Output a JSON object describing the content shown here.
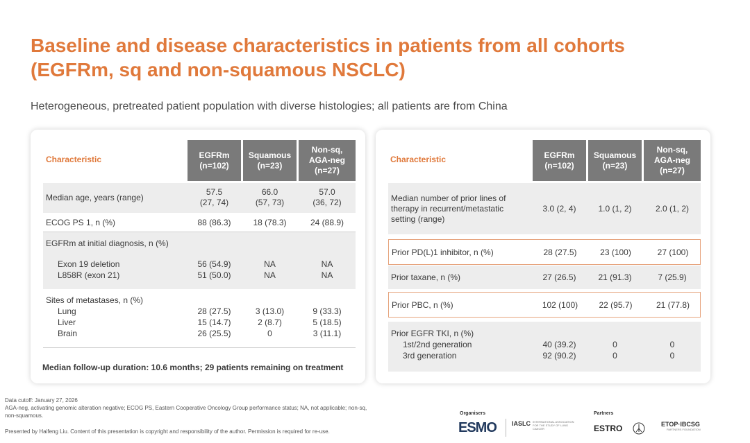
{
  "title_line1": "Baseline and disease characteristics in patients from all cohorts",
  "title_line2": "(EGFRm, sq and non-squamous NSCLC)",
  "subtitle": "Heterogeneous, pretreated patient population with diverse histologies; all patients are from China",
  "columns": {
    "characteristic": "Characteristic",
    "c1_l1": "EGFRm",
    "c1_l2": "(n=102)",
    "c2_l1": "Squamous",
    "c2_l2": "(n=23)",
    "c3_l1": "Non-sq,",
    "c3_l2": "AGA-neg",
    "c3_l3": "(n=27)"
  },
  "left": {
    "age_label": "Median age, years (range)",
    "age_c1a": "57.5",
    "age_c1b": "(27, 74)",
    "age_c2a": "66.0",
    "age_c2b": "(57, 73)",
    "age_c3a": "57.0",
    "age_c3b": "(36, 72)",
    "ecog_label": "ECOG PS 1, n (%)",
    "ecog_c1": "88 (86.3)",
    "ecog_c2": "18 (78.3)",
    "ecog_c3": "24 (88.9)",
    "egfr_label": "EGFRm at initial diagnosis, n (%)",
    "exon19": "Exon 19 deletion",
    "exon19_c1": "56 (54.9)",
    "exon19_c2": "NA",
    "exon19_c3": "NA",
    "l858r": "L858R (exon 21)",
    "l858r_c1": "51 (50.0)",
    "l858r_c2": "NA",
    "l858r_c3": "NA",
    "mets_label": "Sites of metastases, n (%)",
    "lung": "Lung",
    "lung_c1": "28 (27.5)",
    "lung_c2": "3 (13.0)",
    "lung_c3": "9 (33.3)",
    "liver": "Liver",
    "liver_c1": "15 (14.7)",
    "liver_c2": "2 (8.7)",
    "liver_c3": "5 (18.5)",
    "brain": "Brain",
    "brain_c1": "26 (25.5)",
    "brain_c2": "0",
    "brain_c3": "3 (11.1)",
    "followup": "Median follow-up duration: 10.6 months; 29 patients remaining on treatment"
  },
  "right": {
    "lines_l1": "Median number of prior lines of",
    "lines_l2": "therapy in recurrent/metastatic",
    "lines_l3": "setting (range)",
    "lines_c1": "3.0 (2, 4)",
    "lines_c2": "1.0 (1, 2)",
    "lines_c3": "2.0 (1, 2)",
    "pdl1_label": "Prior PD(L)1 inhibitor, n (%)",
    "pdl1_c1": "28 (27.5)",
    "pdl1_c2": "23 (100)",
    "pdl1_c3": "27 (100)",
    "taxane_label": "Prior taxane, n (%)",
    "taxane_c1": "27 (26.5)",
    "taxane_c2": "21 (91.3)",
    "taxane_c3": "7 (25.9)",
    "pbc_label": "Prior PBC, n (%)",
    "pbc_c1": "102 (100)",
    "pbc_c2": "22 (95.7)",
    "pbc_c3": "21 (77.8)",
    "tki_label": "Prior EGFR TKI, n (%)",
    "gen12": "1st/2nd generation",
    "gen12_c1": "40 (39.2)",
    "gen12_c2": "0",
    "gen12_c3": "0",
    "gen3": "3rd generation",
    "gen3_c1": "92 (90.2)",
    "gen3_c2": "0",
    "gen3_c3": "0"
  },
  "footnotes": {
    "cutoff": "Data cutoff: January 27, 2026",
    "abbr1": "AGA-neg, activating genomic alteration negative; ECOG PS, Eastern Cooperative Oncology Group performance status; NA, not applicable; non-sq,",
    "abbr2": "non-squamous.",
    "presented": "Presented by Haifeng Liu. Content of this presentation is copyright and responsibility of the author. Permission is required for re-use."
  },
  "logos": {
    "organisers": "Organisers",
    "partners": "Partners",
    "esmo": "ESMO",
    "iaslc": "IASLC",
    "iaslc_sub": "INTERNATIONAL ASSOCIATION FOR THE STUDY OF LUNG CANCER",
    "estro": "ESTRO",
    "etop": "ETOP·IBCSG",
    "etop_sub": "PARTNERS FOUNDATION"
  }
}
